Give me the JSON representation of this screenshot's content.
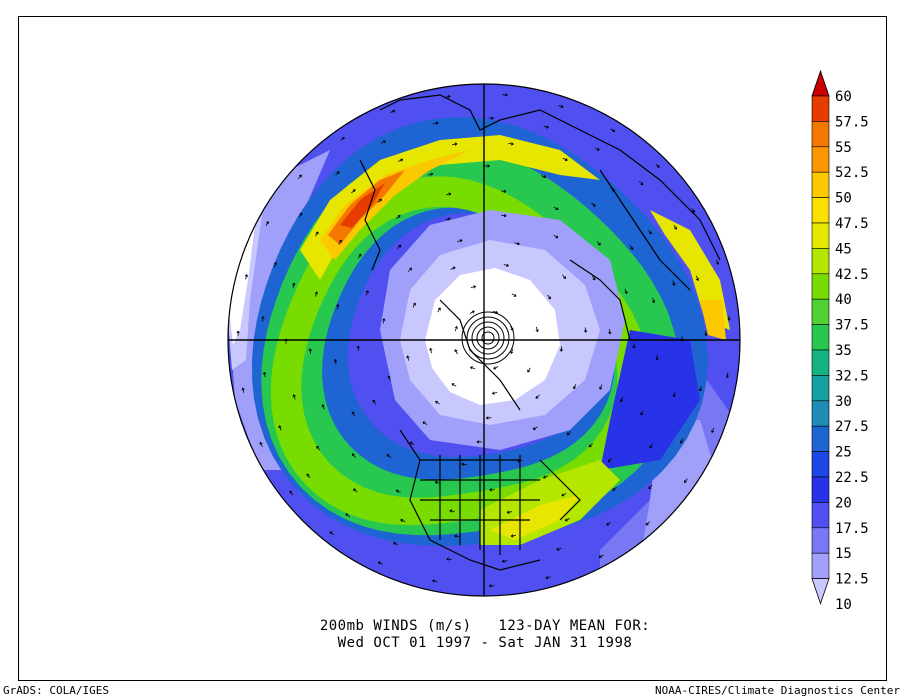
{
  "caption": {
    "line1": "200mb WINDS (m/s)   123-DAY MEAN FOR:",
    "line2": "Wed OCT 01 1997 - Sat JAN 31 1998"
  },
  "credits": {
    "left": "GrADS: COLA/IGES",
    "right": "NOAA-CIRES/Climate Diagnostics Center"
  },
  "legend": {
    "labels": [
      "60",
      "57.5",
      "55",
      "52.5",
      "50",
      "47.5",
      "45",
      "42.5",
      "40",
      "37.5",
      "35",
      "32.5",
      "30",
      "27.5",
      "25",
      "22.5",
      "20",
      "17.5",
      "15",
      "12.5",
      "10"
    ],
    "colors": [
      "#c80000",
      "#e63c00",
      "#f47800",
      "#fa9600",
      "#fcc800",
      "#fce000",
      "#e6e600",
      "#b4e600",
      "#78dc00",
      "#50d232",
      "#28c850",
      "#14b482",
      "#14a0a0",
      "#1e8cb4",
      "#1e64d2",
      "#1e46e6",
      "#2832e6",
      "#5050f0",
      "#7878f5",
      "#a0a0fa",
      "#c8c8ff"
    ]
  }
}
